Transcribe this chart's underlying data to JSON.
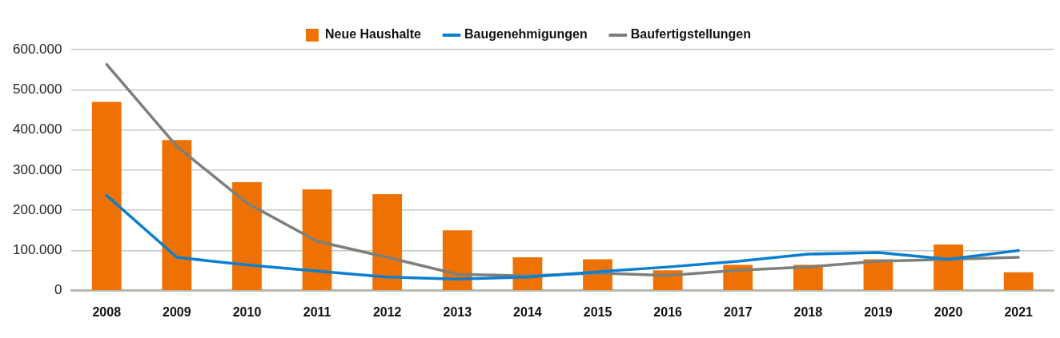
{
  "chart_data": {
    "type": "bar",
    "categories": [
      "2008",
      "2009",
      "2010",
      "2011",
      "2012",
      "2013",
      "2014",
      "2015",
      "2016",
      "2017",
      "2018",
      "2019",
      "2020",
      "2021"
    ],
    "series": [
      {
        "name": "Neue Haushalte",
        "color": "#ee7203",
        "values": [
          470000,
          375000,
          270000,
          252000,
          240000,
          150000,
          83000,
          78000,
          51000,
          64000,
          64000,
          78000,
          115000,
          46000
        ]
      },
      {
        "name": "Baugenehmigungen",
        "type": "line",
        "color": "#0a7fcf",
        "values": [
          237000,
          83000,
          64000,
          49000,
          34000,
          29000,
          34000,
          47000,
          59000,
          73000,
          91000,
          95000,
          78000,
          100000
        ]
      },
      {
        "name": "Baufertigstellungen",
        "type": "line",
        "color": "#7f7f7a",
        "values": [
          563000,
          359000,
          218000,
          123000,
          83000,
          41000,
          37000,
          44000,
          38000,
          51000,
          59000,
          73000,
          78000,
          83000
        ]
      }
    ],
    "ylim": [
      0,
      600000
    ],
    "yticks": [
      {
        "value": 0,
        "label": "0"
      },
      {
        "value": 100000,
        "label": "100.000"
      },
      {
        "value": 200000,
        "label": "200.000"
      },
      {
        "value": 300000,
        "label": "300.000"
      },
      {
        "value": 400000,
        "label": "400.000"
      },
      {
        "value": 500000,
        "label": "500.000"
      },
      {
        "value": 600000,
        "label": "600.000"
      }
    ],
    "grid": "y",
    "legend": "top",
    "marker": "none",
    "line_style": "solid"
  }
}
